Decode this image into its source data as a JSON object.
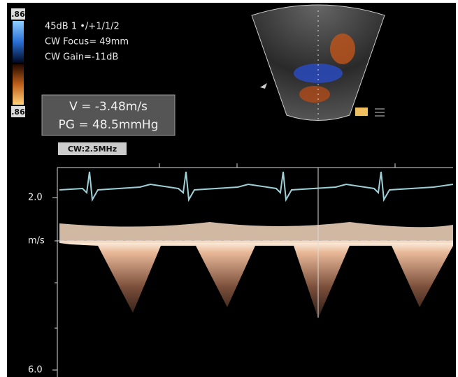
{
  "color_scale": {
    "top": ".86",
    "bottom": ".86"
  },
  "settings": [
    "45dB 1 •/+1/1/2",
    "CW Focus= 49mm",
    "CW Gain=-11dB"
  ],
  "measurement": {
    "velocity": "V = -3.48m/s",
    "gradient": "PG = 48.5mmHg"
  },
  "mode": "CW:2.5MHz",
  "scale_labels": [
    "2.0",
    "m/s",
    "6.0"
  ]
}
